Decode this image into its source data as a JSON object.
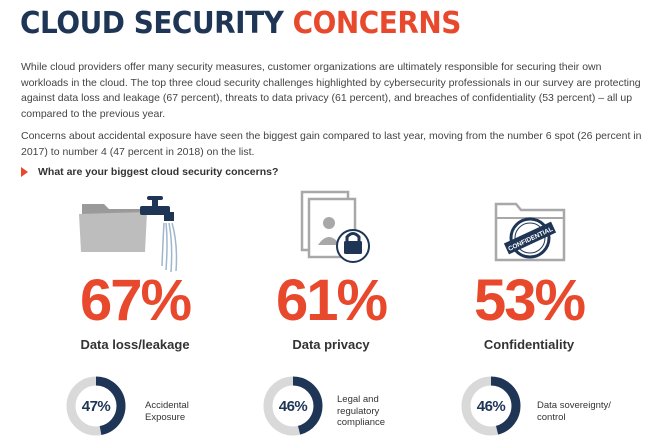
{
  "title": {
    "part1": "CLOUD SECURITY",
    "part2": "CONCERNS"
  },
  "paragraphs": [
    "While cloud providers offer many security measures, customer organizations are ultimately responsible for securing their own workloads in the cloud. The top three cloud security challenges highlighted by cybersecurity professionals in our survey are protecting against data loss and leakage (67 percent), threats to data privacy (61 percent), and breaches of confidentiality (53 percent) – all up compared to the previous year.",
    "Concerns about accidental exposure have seen the biggest gain compared to last year, moving from the number 6 spot (26 percent in 2017) to number 4 (47 percent in 2018) on the list."
  ],
  "question": "What are your biggest cloud security concerns?",
  "colors": {
    "accent": "#e8492d",
    "navy": "#1e3556",
    "ring_bg": "#d9d9d9",
    "icon_gray": "#a8a8a8"
  },
  "top_stats": [
    {
      "value": "67%",
      "label": "Data loss/leakage",
      "icon": "folder-faucet-icon"
    },
    {
      "value": "61%",
      "label": "Data privacy",
      "icon": "document-lock-icon"
    },
    {
      "value": "53%",
      "label": "Confidentiality",
      "icon": "confidential-folder-icon",
      "stamp_text": "CONFIDENTIAL"
    }
  ],
  "bottom_stats": [
    {
      "value": "47%",
      "fraction": 0.47,
      "label_lines": [
        "Accidental",
        "Exposure"
      ]
    },
    {
      "value": "46%",
      "fraction": 0.46,
      "label_lines": [
        "Legal and",
        "regulatory",
        "compliance"
      ]
    },
    {
      "value": "46%",
      "fraction": 0.46,
      "label_lines": [
        "Data sovereignty/",
        "control"
      ]
    }
  ]
}
